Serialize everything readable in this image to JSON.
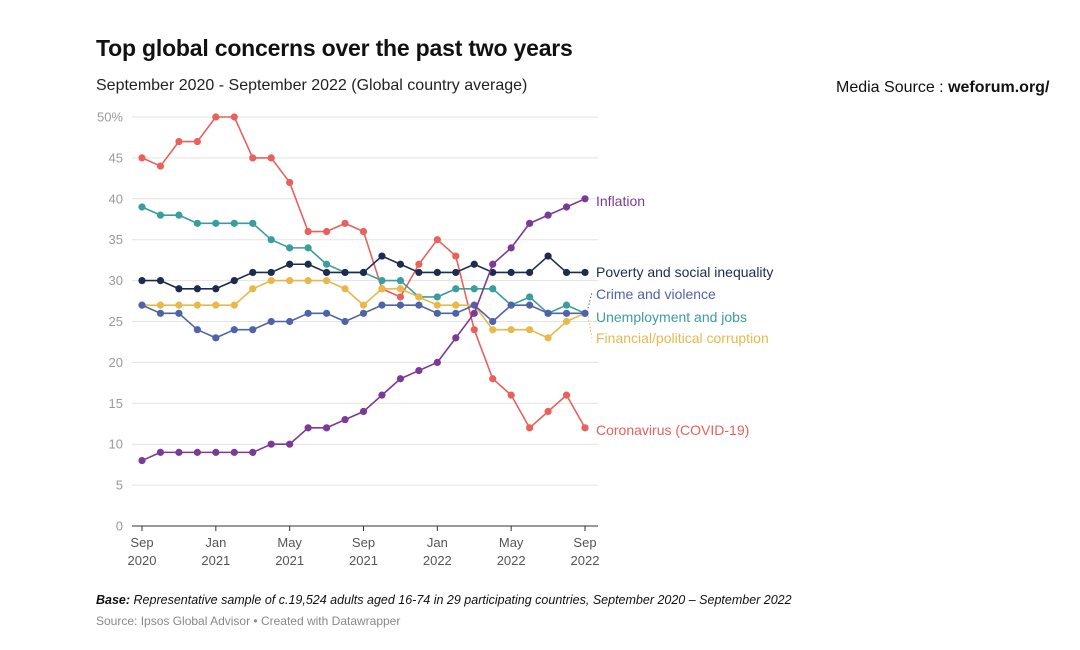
{
  "header": {
    "title": "Top global concerns over the past two years",
    "subtitle": "September 2020 - September 2022 (Global country average)"
  },
  "media_source": {
    "label": "Media Source : ",
    "value": "weforum.org/"
  },
  "footer": {
    "base_label": "Base:",
    "base_text": " Representative sample of c.19,524 adults aged 16-74 in 29 participating countries, September 2020 – September 2022",
    "source": "Source: Ipsos Global Advisor • Created with Datawrapper"
  },
  "chart_data": {
    "type": "line",
    "x_labels": [
      "Sep 2020",
      "Oct 2020",
      "Nov 2020",
      "Dec 2020",
      "Jan 2021",
      "Feb 2021",
      "Mar 2021",
      "Apr 2021",
      "May 2021",
      "Jun 2021",
      "Jul 2021",
      "Aug 2021",
      "Sep 2021",
      "Oct 2021",
      "Nov 2021",
      "Dec 2021",
      "Jan 2022",
      "Feb 2022",
      "Mar 2022",
      "Apr 2022",
      "May 2022",
      "Jun 2022",
      "Jul 2022",
      "Aug 2022",
      "Sep 2022"
    ],
    "x_ticks": [
      {
        "index": 0,
        "line1": "Sep",
        "line2": "2020"
      },
      {
        "index": 4,
        "line1": "Jan",
        "line2": "2021"
      },
      {
        "index": 8,
        "line1": "May",
        "line2": "2021"
      },
      {
        "index": 12,
        "line1": "Sep",
        "line2": "2021"
      },
      {
        "index": 16,
        "line1": "Jan",
        "line2": "2022"
      },
      {
        "index": 20,
        "line1": "May",
        "line2": "2022"
      },
      {
        "index": 24,
        "line1": "Sep",
        "line2": "2022"
      }
    ],
    "y_ticks": [
      {
        "value": 0,
        "label": "0"
      },
      {
        "value": 5,
        "label": "5"
      },
      {
        "value": 10,
        "label": "10"
      },
      {
        "value": 15,
        "label": "15"
      },
      {
        "value": 20,
        "label": "20"
      },
      {
        "value": 25,
        "label": "25"
      },
      {
        "value": 30,
        "label": "30"
      },
      {
        "value": 35,
        "label": "35"
      },
      {
        "value": 40,
        "label": "40"
      },
      {
        "value": 45,
        "label": "45"
      },
      {
        "value": 50,
        "label": "50%"
      }
    ],
    "ylim": [
      0,
      50
    ],
    "grid": true,
    "legend": "direct labels at right end of lines",
    "series": [
      {
        "name": "Coronavirus (COVID-19)",
        "color": "#e8615d",
        "values": [
          45,
          44,
          47,
          47,
          50,
          50,
          45,
          45,
          42,
          36,
          36,
          37,
          36,
          29,
          28,
          32,
          35,
          33,
          24,
          18,
          16,
          12,
          14,
          16,
          12
        ]
      },
      {
        "name": "Unemployment and jobs",
        "color": "#3a9e9c",
        "values": [
          39,
          38,
          38,
          37,
          37,
          37,
          37,
          35,
          34,
          34,
          32,
          31,
          31,
          30,
          30,
          28,
          28,
          29,
          29,
          29,
          27,
          28,
          26,
          27,
          26
        ]
      },
      {
        "name": "Financial/political corruption",
        "color": "#e8b94a",
        "values": [
          27,
          27,
          27,
          27,
          27,
          27,
          29,
          30,
          30,
          30,
          30,
          29,
          27,
          29,
          29,
          28,
          27,
          27,
          27,
          24,
          24,
          24,
          23,
          25,
          26
        ]
      },
      {
        "name": "Crime and violence",
        "color": "#4f64a8",
        "values": [
          27,
          26,
          26,
          24,
          23,
          24,
          24,
          25,
          25,
          26,
          26,
          25,
          26,
          27,
          27,
          27,
          26,
          26,
          27,
          25,
          27,
          27,
          26,
          26,
          26
        ]
      },
      {
        "name": "Poverty and social inequality",
        "color": "#1c2b50",
        "values": [
          30,
          30,
          29,
          29,
          29,
          30,
          31,
          31,
          32,
          32,
          31,
          31,
          31,
          33,
          32,
          31,
          31,
          31,
          32,
          31,
          31,
          31,
          33,
          31,
          31
        ]
      },
      {
        "name": "Inflation",
        "color": "#7b3a96",
        "values": [
          8,
          9,
          9,
          9,
          9,
          9,
          9,
          10,
          10,
          12,
          12,
          13,
          14,
          16,
          18,
          19,
          20,
          23,
          26,
          32,
          34,
          37,
          38,
          39,
          40
        ]
      }
    ]
  }
}
